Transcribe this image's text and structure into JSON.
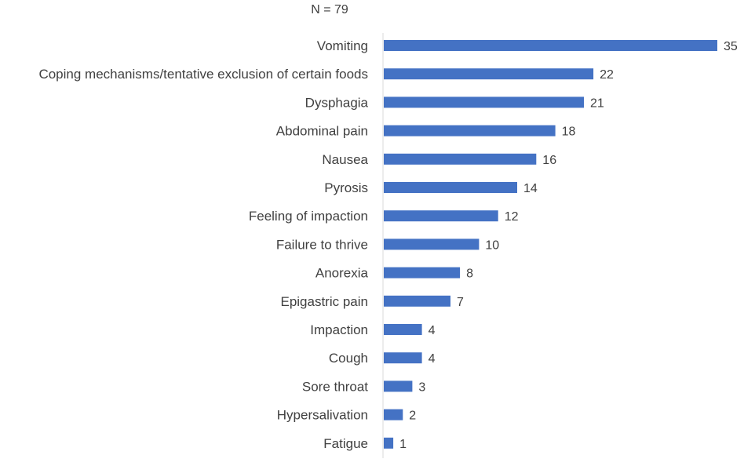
{
  "chart_data": {
    "type": "bar",
    "orientation": "horizontal",
    "subtitle": "N = 79",
    "categories": [
      "Vomiting",
      "Coping mechanisms/tentative exclusion of certain foods",
      "Dysphagia",
      "Abdominal pain",
      "Nausea",
      "Pyrosis",
      "Feeling of impaction",
      "Failure to thrive",
      "Anorexia",
      "Epigastric pain",
      "Impaction",
      "Cough",
      "Sore throat",
      "Hypersalivation",
      "Fatigue"
    ],
    "values": [
      35,
      22,
      21,
      18,
      16,
      14,
      12,
      10,
      8,
      7,
      4,
      4,
      3,
      2,
      1
    ],
    "data_labels": [
      "35",
      "22",
      "21",
      "18",
      "16",
      "14",
      "12",
      "10",
      "8",
      "7",
      "4",
      "4",
      "3",
      "2",
      "1"
    ],
    "xlim": [
      0,
      35
    ],
    "grid": false,
    "legend": "none",
    "bar_color": "#4472C4",
    "axis_color": "#D9D9D9",
    "text_color": "#404040"
  }
}
